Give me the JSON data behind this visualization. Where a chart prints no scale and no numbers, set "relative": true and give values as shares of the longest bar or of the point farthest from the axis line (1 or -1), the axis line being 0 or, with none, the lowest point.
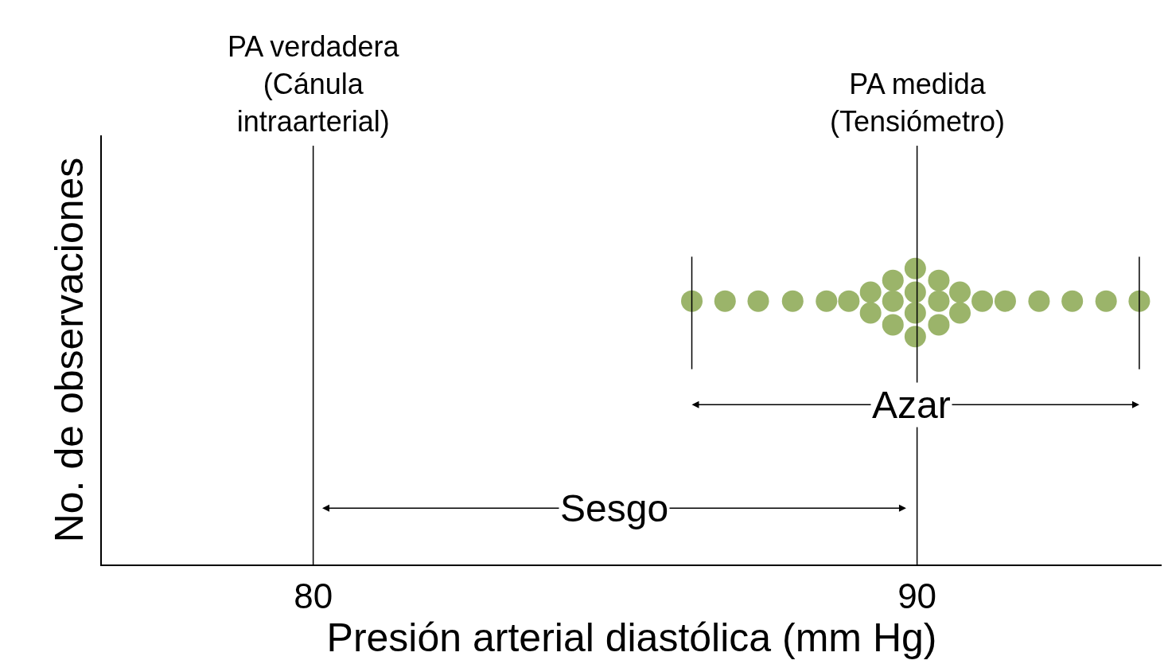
{
  "chart_data": {
    "type": "scatter",
    "relative": true,
    "xlabel": "Presión arterial diastólica (mm Hg)",
    "ylabel": "No. de observaciones",
    "xlim": [
      76.5,
      94.05
    ],
    "xticks": [
      80,
      90
    ],
    "marker": "circle",
    "series": [
      {
        "color": "#9bb46a",
        "x": [
          86.27,
          86.82,
          87.37,
          87.94,
          88.5,
          88.87,
          89.23,
          89.23,
          89.6,
          89.6,
          89.6,
          89.97,
          89.97,
          89.97,
          89.97,
          90.36,
          90.36,
          90.36,
          90.71,
          90.71,
          91.08,
          91.46,
          92.02,
          92.57,
          93.13,
          93.68
        ],
        "values": [
          0.89,
          0.89,
          0.89,
          0.89,
          0.89,
          0.89,
          0.92,
          0.85,
          0.96,
          0.89,
          0.81,
          1,
          0.92,
          0.85,
          0.77,
          0.96,
          0.89,
          0.81,
          0.92,
          0.85,
          0.89,
          0.89,
          0.89,
          0.89,
          0.89,
          0.89
        ]
      }
    ],
    "ref_lines": [
      {
        "axis": "x",
        "value": 80,
        "label": "PA verdadera\n(Cánula\nintraarterial)",
        "color": "#000000"
      },
      {
        "axis": "x",
        "value": 90,
        "label": "PA medida\n(Tensiómetro)",
        "color": "#000000"
      },
      {
        "axis": "x",
        "value": 86.27,
        "color": "#000000"
      },
      {
        "axis": "x",
        "value": 93.68,
        "color": "#000000"
      }
    ],
    "annotations": [
      "Azar",
      "Sesgo"
    ]
  }
}
